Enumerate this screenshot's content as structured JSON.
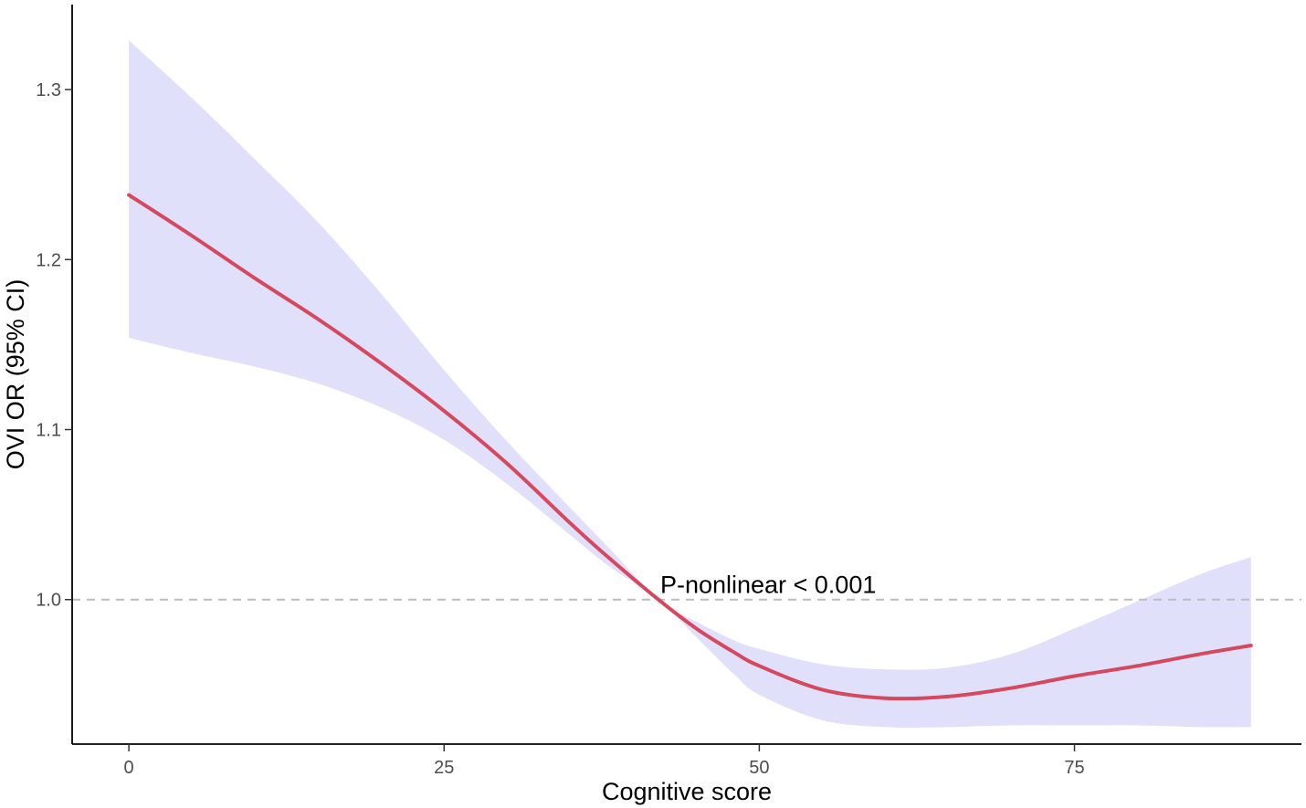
{
  "chart_data": {
    "type": "line",
    "title": "",
    "xlabel": "Cognitive score",
    "ylabel": "OVI OR (95% CI)",
    "xlim": [
      -4.5,
      93
    ],
    "ylim": [
      0.915,
      1.35
    ],
    "x_ticks": [
      0,
      25,
      50,
      75
    ],
    "y_ticks": [
      1.0,
      1.1,
      1.2,
      1.3
    ],
    "x_tick_labels": [
      "0",
      "25",
      "50",
      "75"
    ],
    "y_tick_labels": [
      "1.0",
      "1.1",
      "1.2",
      "1.3"
    ],
    "grid": false,
    "reference_line": {
      "y": 1.0,
      "style": "dashed",
      "color": "#bdbdbd"
    },
    "annotation": {
      "text": "P-nonlinear < 0.001",
      "x": 42,
      "y": 1.0
    },
    "series": [
      {
        "type": "line",
        "color": "#d6485d",
        "x": [
          0,
          5,
          10,
          15,
          20,
          25,
          30,
          35,
          38,
          42,
          45,
          48,
          50,
          55,
          60,
          65,
          70,
          75,
          80,
          85,
          89
        ],
        "y": [
          1.238,
          1.214,
          1.189,
          1.165,
          1.139,
          1.111,
          1.08,
          1.045,
          1.025,
          1.0,
          0.983,
          0.969,
          0.961,
          0.947,
          0.942,
          0.943,
          0.948,
          0.955,
          0.961,
          0.968,
          0.973
        ]
      }
    ],
    "confidence_band": {
      "color": "#e0e0fa",
      "x": [
        0,
        5,
        10,
        15,
        20,
        25,
        30,
        35,
        38,
        42,
        45,
        48,
        50,
        55,
        60,
        65,
        70,
        75,
        80,
        85,
        89
      ],
      "lower": [
        1.154,
        1.145,
        1.137,
        1.127,
        1.113,
        1.094,
        1.068,
        1.038,
        1.02,
        1.0,
        0.978,
        0.956,
        0.944,
        0.929,
        0.925,
        0.925,
        0.926,
        0.926,
        0.926,
        0.925,
        0.925
      ],
      "upper": [
        1.329,
        1.295,
        1.259,
        1.222,
        1.18,
        1.135,
        1.093,
        1.054,
        1.031,
        1.0,
        0.987,
        0.976,
        0.971,
        0.962,
        0.959,
        0.96,
        0.968,
        0.983,
        0.999,
        1.015,
        1.025
      ]
    }
  }
}
